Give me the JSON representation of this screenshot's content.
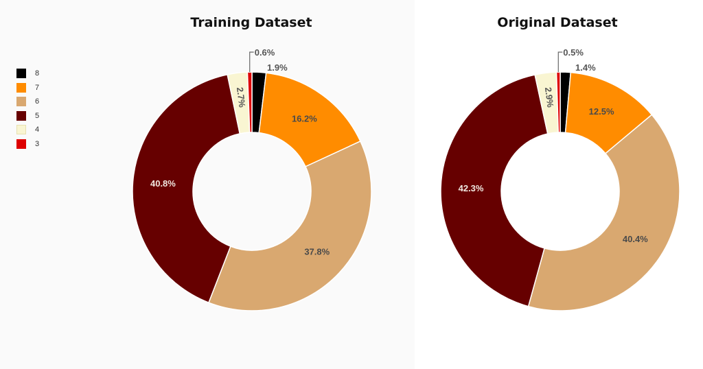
{
  "colors": {
    "8": "#000000",
    "7": "#ff8c00",
    "6": "#d9a870",
    "5": "#660000",
    "4": "#f9f5d2",
    "3": "#dd0000"
  },
  "legend": {
    "items": [
      {
        "label": "8",
        "color": "#000000"
      },
      {
        "label": "7",
        "color": "#ff8c00"
      },
      {
        "label": "6",
        "color": "#d9a870"
      },
      {
        "label": "5",
        "color": "#660000"
      },
      {
        "label": "4",
        "color": "#f9f5d2"
      },
      {
        "label": "3",
        "color": "#dd0000"
      }
    ]
  },
  "chart_data": [
    {
      "type": "pie",
      "title": "Training Dataset",
      "categories": [
        "8",
        "7",
        "6",
        "5",
        "4",
        "3"
      ],
      "values": [
        1.9,
        16.2,
        37.8,
        40.8,
        2.7,
        0.6
      ],
      "labels": [
        "1.9%",
        "16.2%",
        "37.8%",
        "40.8%",
        "2.7%",
        "0.6%"
      ]
    },
    {
      "type": "pie",
      "title": "Original Dataset",
      "categories": [
        "8",
        "7",
        "6",
        "5",
        "4",
        "3"
      ],
      "values": [
        1.4,
        12.5,
        40.4,
        42.3,
        2.9,
        0.5
      ],
      "labels": [
        "1.4%",
        "12.5%",
        "40.4%",
        "42.3%",
        "2.9%",
        "0.5%"
      ]
    }
  ]
}
